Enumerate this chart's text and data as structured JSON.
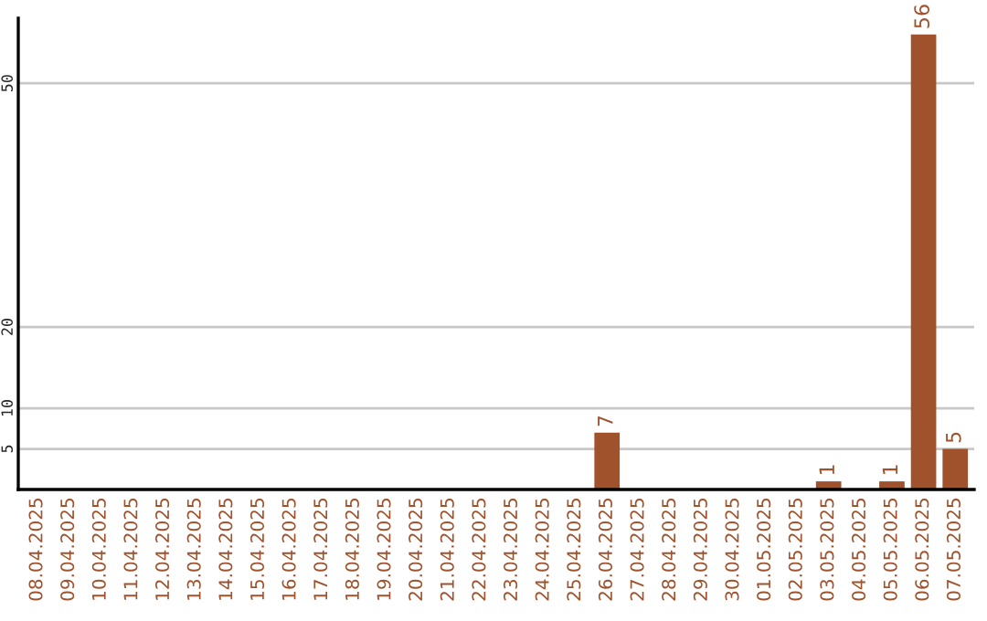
{
  "chart_data": {
    "type": "bar",
    "categories": [
      "08.04.2025",
      "09.04.2025",
      "10.04.2025",
      "11.04.2025",
      "12.04.2025",
      "13.04.2025",
      "14.04.2025",
      "15.04.2025",
      "16.04.2025",
      "17.04.2025",
      "18.04.2025",
      "19.04.2025",
      "20.04.2025",
      "21.04.2025",
      "22.04.2025",
      "23.04.2025",
      "24.04.2025",
      "25.04.2025",
      "26.04.2025",
      "27.04.2025",
      "28.04.2025",
      "29.04.2025",
      "30.04.2025",
      "01.05.2025",
      "02.05.2025",
      "03.05.2025",
      "04.05.2025",
      "05.05.2025",
      "06.05.2025",
      "07.05.2025"
    ],
    "values": [
      0,
      0,
      0,
      0,
      0,
      0,
      0,
      0,
      0,
      0,
      0,
      0,
      0,
      0,
      0,
      0,
      0,
      0,
      7,
      0,
      0,
      0,
      0,
      0,
      0,
      1,
      0,
      1,
      56,
      5
    ],
    "value_labels": [
      null,
      null,
      null,
      null,
      null,
      null,
      null,
      null,
      null,
      null,
      null,
      null,
      null,
      null,
      null,
      null,
      null,
      null,
      "7",
      null,
      null,
      null,
      null,
      null,
      null,
      "1",
      null,
      "1",
      "56",
      "5"
    ],
    "color": "#a0522d",
    "ylim": [
      0,
      58
    ],
    "yticks": [
      5,
      10,
      20,
      50
    ],
    "grid": "y"
  }
}
